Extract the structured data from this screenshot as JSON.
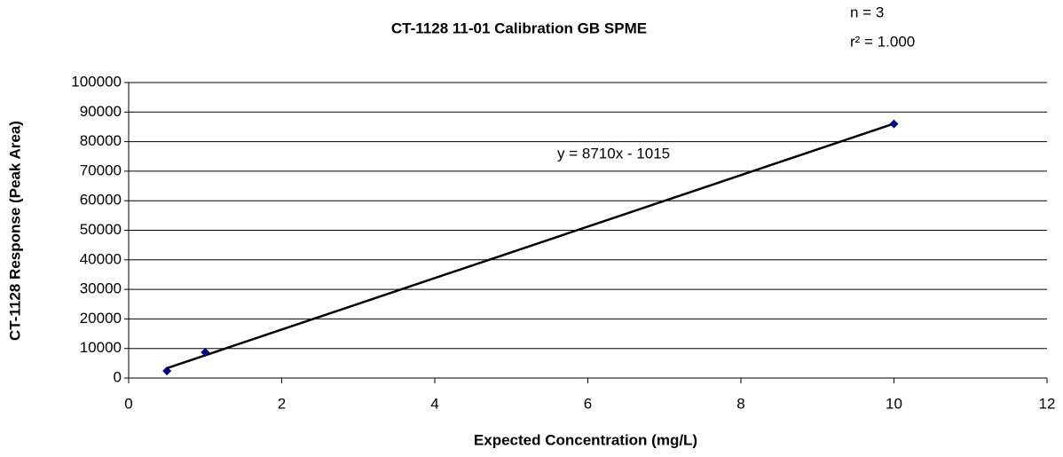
{
  "chart_data": {
    "type": "scatter",
    "title": "CT-1128 11-01 Calibration GB SPME",
    "annotations": [
      "n = 3",
      "r² = 1.000"
    ],
    "equation": "y = 8710x - 1015",
    "x_label": "Expected Concentration (mg/L)",
    "y_label": "CT-1128 Response (Peak Area)",
    "x": [
      0.5,
      1,
      10
    ],
    "values": [
      2400,
      8700,
      86000
    ],
    "color": "#000080",
    "trendline": {
      "x": [
        0.5,
        10
      ],
      "values": [
        3340,
        86085
      ],
      "color": "#000000"
    },
    "xlim": [
      0,
      12
    ],
    "xticks": [
      0,
      2,
      4,
      6,
      8,
      10,
      12
    ],
    "ylim": [
      0,
      100000
    ],
    "yticks": [
      0,
      10000,
      20000,
      30000,
      40000,
      50000,
      60000,
      70000,
      80000,
      90000,
      100000
    ],
    "grid": true
  }
}
